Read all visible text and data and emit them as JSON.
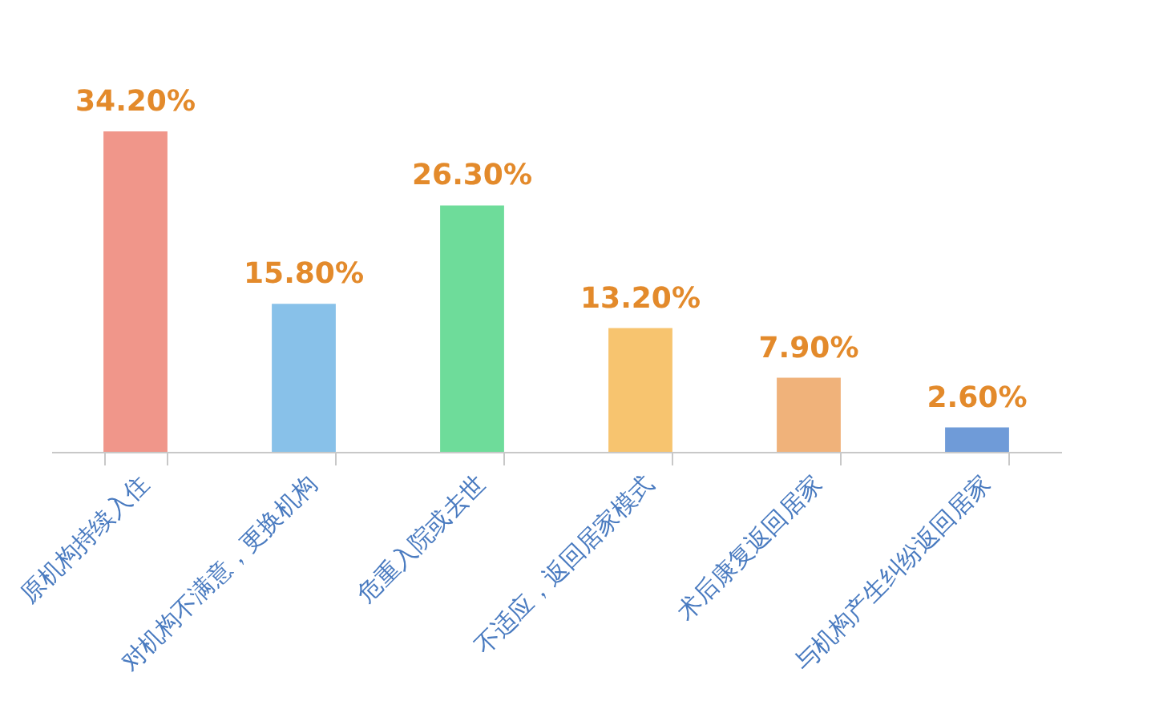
{
  "chart_data": {
    "type": "bar",
    "categories": [
      "原机构持续入住",
      "对机构不满意，更换机构",
      "危重入院或去世",
      "不适应，返回居家模式",
      "术后康复返回居家",
      "与机构产生纠纷返回居家"
    ],
    "values": [
      34.2,
      15.8,
      26.3,
      13.2,
      7.9,
      2.6
    ],
    "colors": [
      "#f0968a",
      "#88c1e9",
      "#6edc9a",
      "#f7c46f",
      "#f0b27a",
      "#6f9bd8"
    ],
    "value_labels": [
      "34.20%",
      "15.80%",
      "26.30%",
      "13.20%",
      "7.90%",
      "2.60%"
    ],
    "grid": false
  }
}
